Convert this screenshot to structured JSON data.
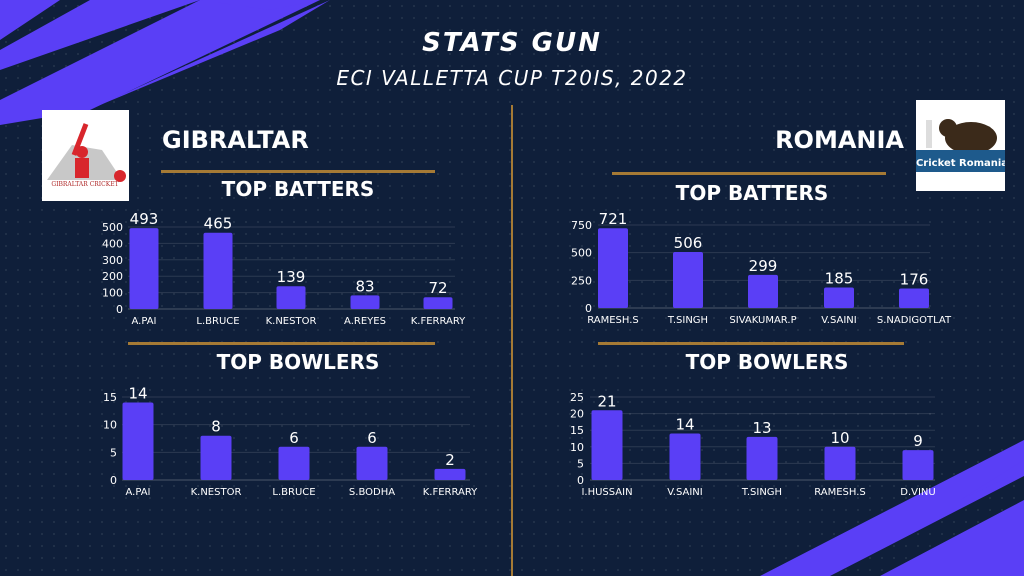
{
  "header": {
    "title": "STATS GUN",
    "subtitle": "ECI VALLETTA CUP T20IS, 2022"
  },
  "teams": [
    {
      "name": "GIBRALTAR",
      "logo_text": "GIBRALTAR CRICKET"
    },
    {
      "name": "ROMANIA",
      "logo_text": "Cricket Romania"
    }
  ],
  "colors": {
    "bar": "#5a3ff6",
    "accent": "#a57a35",
    "background": "#0f1f3a"
  },
  "chart_data": [
    {
      "type": "bar",
      "title": "TOP BATTERS",
      "team": "GIBRALTAR",
      "categories": [
        "A.PAI",
        "L.BRUCE",
        "K.NESTOR",
        "A.REYES",
        "K.FERRARY"
      ],
      "values": [
        493,
        465,
        139,
        83,
        72
      ],
      "yticks": [
        0,
        100,
        200,
        300,
        400,
        500
      ],
      "ylim": [
        0,
        500
      ]
    },
    {
      "type": "bar",
      "title": "TOP BATTERS",
      "team": "ROMANIA",
      "categories": [
        "RAMESH.S",
        "T.SINGH",
        "SIVAKUMAR.P",
        "V.SAINI",
        "S.NADIGOTLAT"
      ],
      "values": [
        721,
        506,
        299,
        185,
        176
      ],
      "yticks": [
        0,
        250,
        500,
        750
      ],
      "ylim": [
        0,
        750
      ]
    },
    {
      "type": "bar",
      "title": "TOP BOWLERS",
      "team": "GIBRALTAR",
      "categories": [
        "A.PAI",
        "K.NESTOR",
        "L.BRUCE",
        "S.BODHA",
        "K.FERRARY"
      ],
      "values": [
        14,
        8,
        6,
        6,
        2
      ],
      "yticks": [
        0,
        5,
        10,
        15
      ],
      "ylim": [
        0,
        15
      ]
    },
    {
      "type": "bar",
      "title": "TOP BOWLERS",
      "team": "ROMANIA",
      "categories": [
        "I.HUSSAIN",
        "V.SAINI",
        "T.SINGH",
        "RAMESH.S",
        "D.VINU"
      ],
      "values": [
        21,
        14,
        13,
        10,
        9
      ],
      "yticks": [
        0,
        5,
        10,
        15,
        20,
        25
      ],
      "ylim": [
        0,
        25
      ]
    }
  ]
}
